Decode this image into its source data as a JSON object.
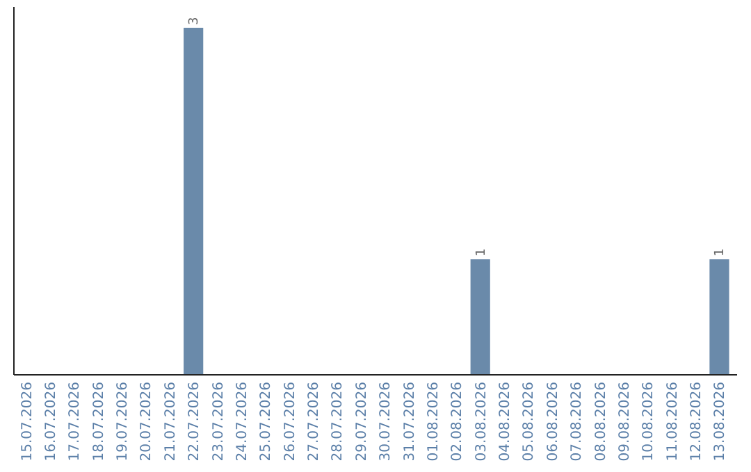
{
  "chart_data": {
    "type": "bar",
    "categories": [
      "15.07.2026",
      "16.07.2026",
      "17.07.2026",
      "18.07.2026",
      "19.07.2026",
      "20.07.2026",
      "21.07.2026",
      "22.07.2026",
      "23.07.2026",
      "24.07.2026",
      "25.07.2026",
      "26.07.2026",
      "27.07.2026",
      "28.07.2026",
      "29.07.2026",
      "30.07.2026",
      "31.07.2026",
      "01.08.2026",
      "02.08.2026",
      "03.08.2026",
      "04.08.2026",
      "05.08.2026",
      "06.08.2026",
      "07.08.2026",
      "08.08.2026",
      "09.08.2026",
      "10.08.2026",
      "11.08.2026",
      "12.08.2026",
      "13.08.2026"
    ],
    "values": [
      0,
      0,
      0,
      0,
      0,
      0,
      0,
      3,
      0,
      0,
      0,
      0,
      0,
      0,
      0,
      0,
      0,
      0,
      0,
      1,
      0,
      0,
      0,
      0,
      0,
      0,
      0,
      0,
      0,
      1
    ],
    "value_labels": [
      null,
      null,
      null,
      null,
      null,
      null,
      null,
      "3",
      null,
      null,
      null,
      null,
      null,
      null,
      null,
      null,
      null,
      null,
      null,
      "1",
      null,
      null,
      null,
      null,
      null,
      null,
      null,
      null,
      null,
      "1"
    ],
    "color": "#6a8aaa"
  }
}
